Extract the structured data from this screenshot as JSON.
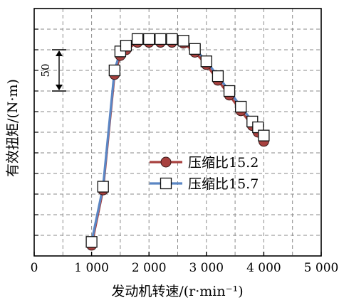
{
  "chart_data": {
    "type": "line",
    "title": "",
    "xlabel": "发动机转速/(r·min⁻¹)",
    "ylabel": "有效扭矩/(N·m)",
    "xlim": [
      0,
      5000
    ],
    "xticks": [
      0,
      1000,
      2000,
      3000,
      4000,
      5000
    ],
    "xtick_labels": [
      "0",
      "1 000",
      "2 000",
      "3 000",
      "4 000",
      "5 000"
    ],
    "ylim": [
      -75,
      225
    ],
    "ytick_labels_shown": false,
    "grid": true,
    "scale_bar": {
      "label": "50",
      "value": 50
    },
    "legend_position": "center-right",
    "series": [
      {
        "name": "压缩比15.2",
        "color": "#a8413f",
        "marker": "circle",
        "x": [
          1000,
          1200,
          1400,
          1500,
          1600,
          1800,
          2000,
          2200,
          2400,
          2600,
          2800,
          3000,
          3200,
          3400,
          3600,
          3800,
          3900,
          4000
        ],
        "y": [
          -62,
          5,
          145,
          168,
          175,
          184,
          184,
          184,
          184,
          183,
          172,
          157,
          138,
          120,
          101,
          83,
          75,
          64
        ]
      },
      {
        "name": "压缩比15.7",
        "color": "#5b86c4",
        "marker": "square",
        "x": [
          1000,
          1200,
          1400,
          1500,
          1600,
          1800,
          2000,
          2200,
          2400,
          2600,
          2800,
          3000,
          3200,
          3400,
          3600,
          3800,
          3900,
          4000
        ],
        "y": [
          -58,
          9,
          150,
          173,
          180,
          188,
          188,
          188,
          188,
          186,
          176,
          161,
          143,
          125,
          106,
          88,
          81,
          71
        ]
      }
    ]
  }
}
